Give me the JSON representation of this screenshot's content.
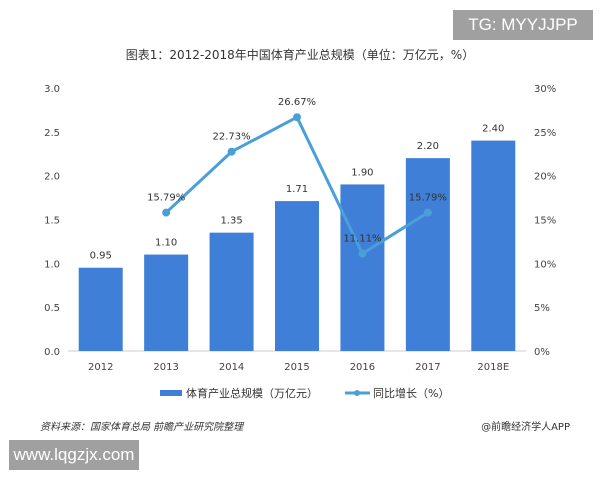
{
  "watermark_top": "TG: MYYJJPP",
  "watermark_bottom": "www.lqgzjx.com",
  "source": "资料来源：国家体育总局 前瞻产业研究院整理",
  "brand": "@前瞻经济学人APP",
  "chart_data": {
    "type": "bar+line",
    "title": "图表1：2012-2018年中国体育产业总规模（单位：万亿元，%）",
    "categories": [
      "2012",
      "2013",
      "2014",
      "2015",
      "2016",
      "2017",
      "2018E"
    ],
    "series": [
      {
        "name": "体育产业总规模（万亿元）",
        "type": "bar",
        "axis": "left",
        "color": "#3f7fd8",
        "values": [
          0.95,
          1.1,
          1.35,
          1.71,
          1.9,
          2.2,
          2.4
        ],
        "labels": [
          "0.95",
          "1.10",
          "1.35",
          "1.71",
          "1.90",
          "2.20",
          "2.40"
        ]
      },
      {
        "name": "同比增长（%）",
        "type": "line",
        "axis": "right",
        "color": "#4a9fd8",
        "values": [
          null,
          15.79,
          22.73,
          26.67,
          11.11,
          15.79,
          null
        ],
        "labels": [
          "",
          "15.79%",
          "22.73%",
          "26.67%",
          "11.11%",
          "15.79%",
          ""
        ]
      }
    ],
    "y_left": {
      "min": 0,
      "max": 3.0,
      "ticks": [
        "0.0",
        "0.5",
        "1.0",
        "1.5",
        "2.0",
        "2.5",
        "3.0"
      ]
    },
    "y_right": {
      "min": 0,
      "max": 30,
      "ticks": [
        "0%",
        "5%",
        "10%",
        "15%",
        "20%",
        "25%",
        "30%"
      ]
    },
    "grid": false,
    "legend": "bottom"
  }
}
